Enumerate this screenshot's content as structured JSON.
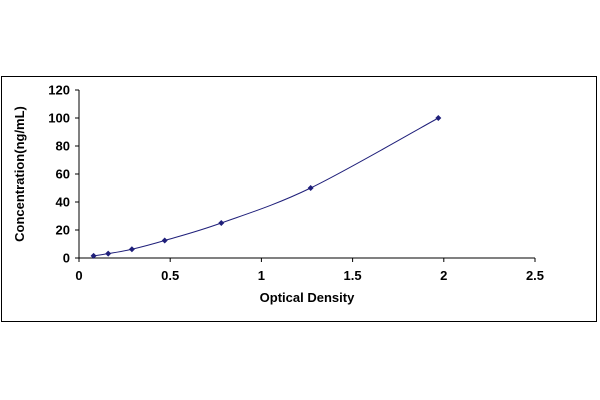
{
  "chart_data": {
    "type": "scatter",
    "title": "",
    "xlabel": "Optical Density",
    "ylabel": "Concentration(ng/mL)",
    "xlim": [
      0,
      2.5
    ],
    "ylim": [
      0,
      120
    ],
    "x_ticks": [
      0,
      0.5,
      1,
      1.5,
      2,
      2.5
    ],
    "x_tick_labels": [
      "0",
      "0.5",
      "1",
      "1.5",
      "2",
      "2.5"
    ],
    "y_ticks": [
      0,
      20,
      40,
      60,
      80,
      100,
      120
    ],
    "y_tick_labels": [
      "0",
      "20",
      "40",
      "60",
      "80",
      "100",
      "120"
    ],
    "grid": false,
    "legend": "none",
    "trendline": "smooth curve",
    "series": [
      {
        "x": [
          0.08,
          0.16,
          0.29,
          0.47,
          0.78,
          1.27,
          1.97
        ],
        "y": [
          1.56,
          3.12,
          6.25,
          12.5,
          25,
          50,
          100
        ]
      }
    ],
    "colors": {
      "marker": "#1f1f7a",
      "line": "#1f1f7a",
      "axis": "#000000",
      "frame": "#000000"
    }
  }
}
